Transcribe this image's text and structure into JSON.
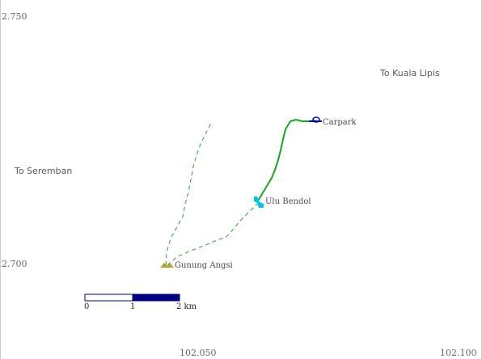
{
  "colors": {
    "frame": "#cccccc",
    "trail_solid": "#1aa51a",
    "trail_dashed": "#2e9e2e",
    "carpark_marker": "#0000cc",
    "waterfall_marker": "#00c8e0",
    "summit_marker": "#b8a030",
    "scale_dark": "#000080"
  },
  "coordinates": {
    "lat_top": "2.750",
    "lat_mid": "2.700",
    "lon_left": "102.050",
    "lon_right": "102.100"
  },
  "directions": {
    "kuala_lipis": "To Kuala Lipis",
    "seremban": "To Seremban"
  },
  "places": {
    "carpark": "Carpark",
    "waterfall": "Ulu Bendol",
    "summit": "Gunung Angsi"
  },
  "scale": {
    "label_0": "0",
    "label_1": "1",
    "label_2": "2 km"
  },
  "icons": {
    "carpark": "car-icon",
    "waterfall": "waterfall-icon",
    "summit": "mountain-icon"
  }
}
